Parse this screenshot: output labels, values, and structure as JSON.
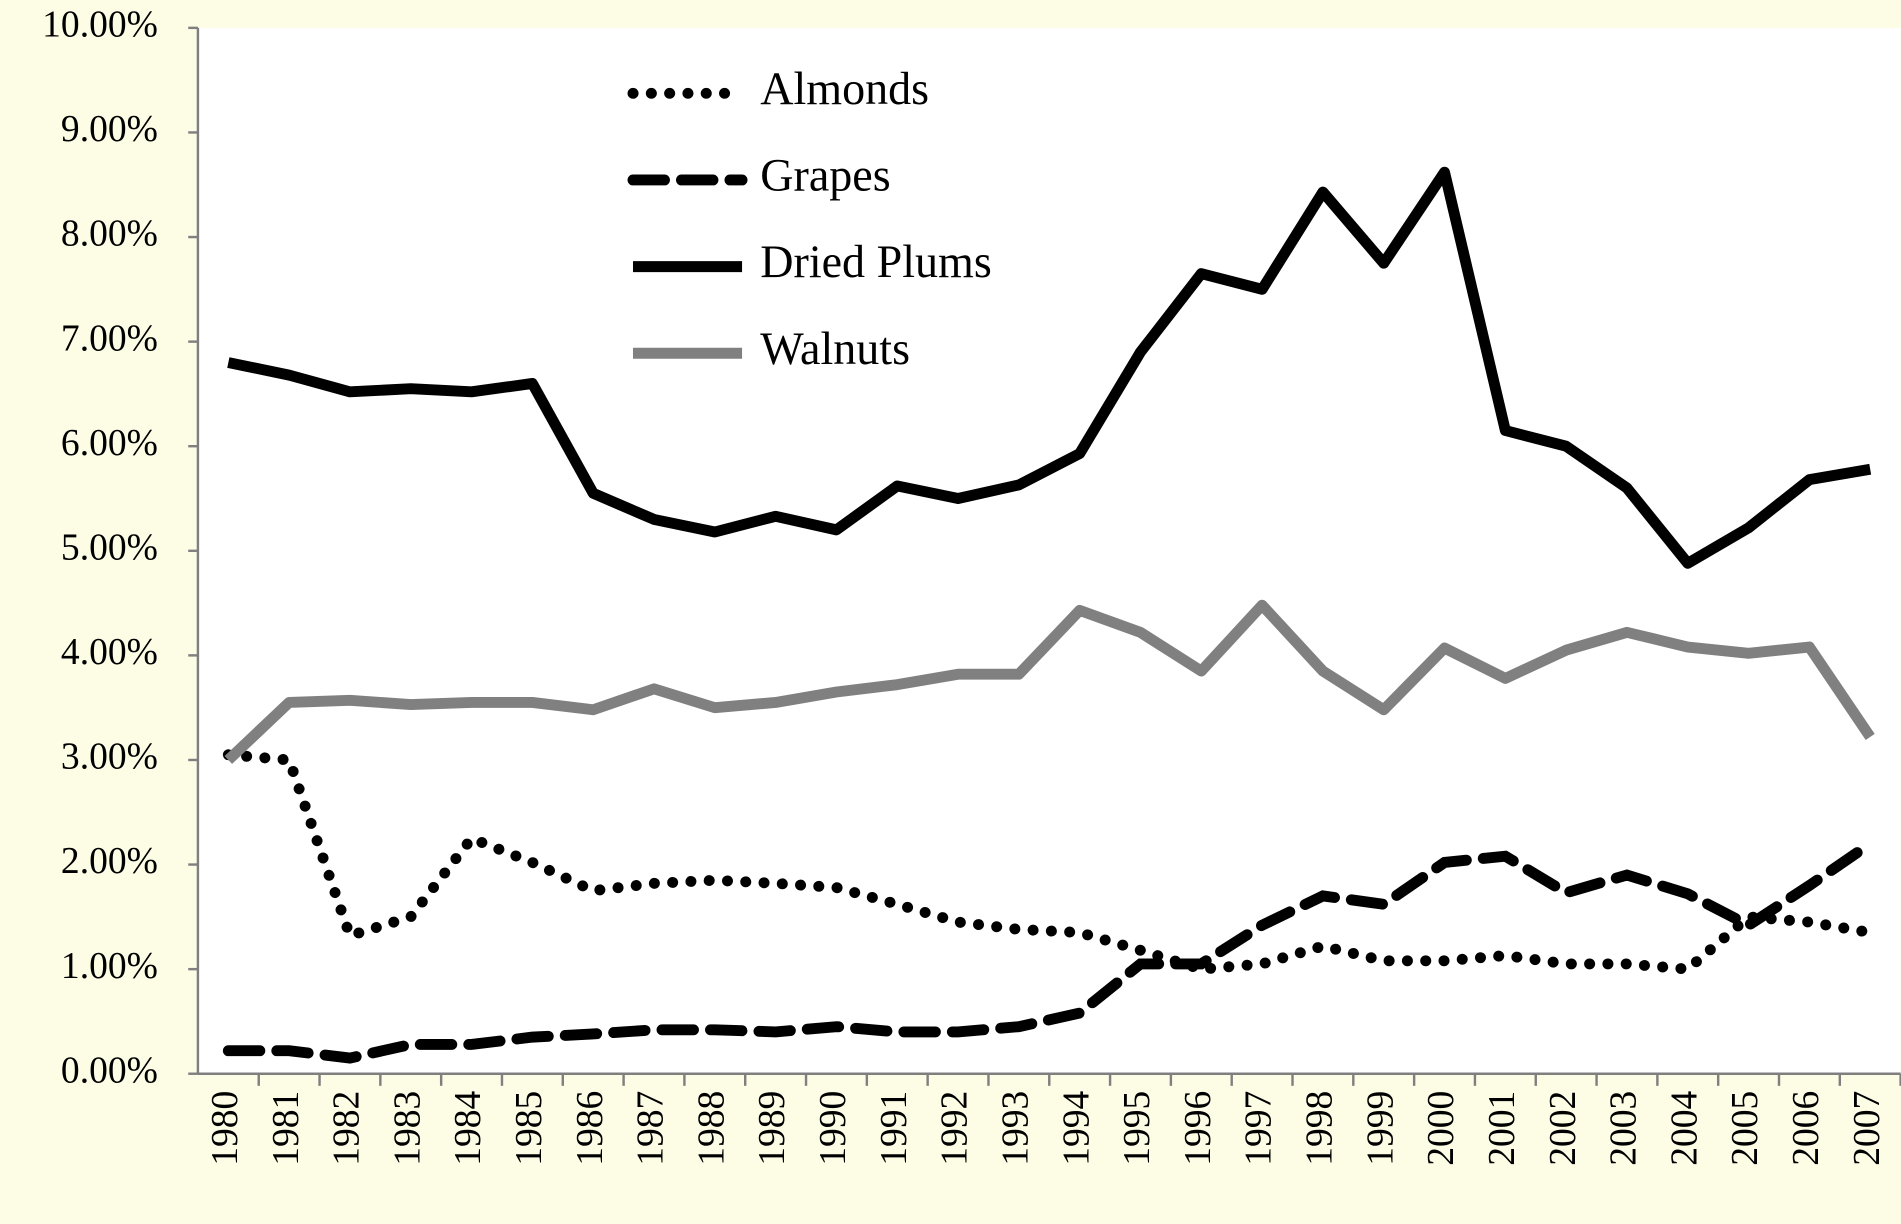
{
  "chart_data": {
    "type": "line",
    "categories": [
      "1980",
      "1981",
      "1982",
      "1983",
      "1984",
      "1985",
      "1986",
      "1987",
      "1988",
      "1989",
      "1990",
      "1991",
      "1992",
      "1993",
      "1994",
      "1995",
      "1996",
      "1997",
      "1998",
      "1999",
      "2000",
      "2001",
      "2002",
      "2003",
      "2004",
      "2005",
      "2006",
      "2007"
    ],
    "series": [
      {
        "name": "Almonds",
        "color": "#000000",
        "dash": "dotted",
        "values": [
          3.05,
          3.0,
          1.32,
          1.5,
          2.25,
          2.02,
          1.75,
          1.82,
          1.85,
          1.82,
          1.78,
          1.62,
          1.45,
          1.38,
          1.35,
          1.18,
          1.0,
          1.05,
          1.22,
          1.08,
          1.08,
          1.13,
          1.05,
          1.05,
          1.0,
          1.5,
          1.45,
          1.35
        ]
      },
      {
        "name": "Grapes",
        "color": "#000000",
        "dash": "dashed",
        "values": [
          0.22,
          0.22,
          0.15,
          0.28,
          0.28,
          0.35,
          0.38,
          0.42,
          0.42,
          0.4,
          0.45,
          0.4,
          0.4,
          0.45,
          0.58,
          1.05,
          1.05,
          1.42,
          1.7,
          1.62,
          2.02,
          2.08,
          1.73,
          1.9,
          1.72,
          1.42,
          1.8,
          2.2
        ]
      },
      {
        "name": "Dried Plums",
        "color": "#000000",
        "dash": "solid",
        "values": [
          6.8,
          6.68,
          6.52,
          6.55,
          6.52,
          6.6,
          5.55,
          5.3,
          5.18,
          5.33,
          5.2,
          5.62,
          5.5,
          5.63,
          5.93,
          6.9,
          7.65,
          7.5,
          8.43,
          7.75,
          8.62,
          6.15,
          6.0,
          5.6,
          4.88,
          5.22,
          5.68,
          5.78
        ]
      },
      {
        "name": "Walnuts",
        "color": "#808080",
        "dash": "solid",
        "values": [
          3.0,
          3.55,
          3.57,
          3.53,
          3.55,
          3.55,
          3.48,
          3.68,
          3.5,
          3.55,
          3.65,
          3.72,
          3.82,
          3.82,
          4.43,
          4.22,
          3.85,
          4.48,
          3.85,
          3.48,
          4.07,
          3.78,
          4.05,
          4.22,
          4.08,
          4.02,
          4.08,
          3.22
        ]
      }
    ],
    "ylim": [
      0,
      10
    ],
    "yticks": [
      {
        "value": 0,
        "label": "0.00%"
      },
      {
        "value": 1,
        "label": "1.00%"
      },
      {
        "value": 2,
        "label": "2.00%"
      },
      {
        "value": 3,
        "label": "3.00%"
      },
      {
        "value": 4,
        "label": "4.00%"
      },
      {
        "value": 5,
        "label": "5.00%"
      },
      {
        "value": 6,
        "label": "6.00%"
      },
      {
        "value": 7,
        "label": "7.00%"
      },
      {
        "value": 8,
        "label": "8.00%"
      },
      {
        "value": 9,
        "label": "9.00%"
      },
      {
        "value": 10,
        "label": "10.00%"
      }
    ],
    "legend": "upper left",
    "grid": false
  }
}
